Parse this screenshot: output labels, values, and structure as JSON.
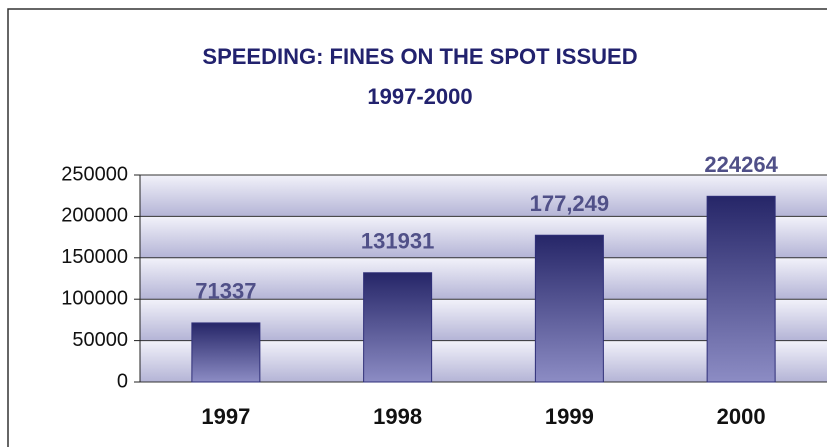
{
  "chart_data": {
    "type": "bar",
    "title": "SPEEDING: FINES ON THE SPOT ISSUED",
    "subtitle": "1997-2000",
    "categories": [
      "1997",
      "1998",
      "1999",
      "2000"
    ],
    "values": [
      71337,
      131931,
      177249,
      224264
    ],
    "value_labels": [
      "71337",
      "131931",
      "177,249",
      "224264"
    ],
    "color": "#2e2e78",
    "ylim": [
      0,
      250000
    ],
    "yticks": [
      0,
      50000,
      100000,
      150000,
      200000,
      250000
    ],
    "grid": true
  }
}
